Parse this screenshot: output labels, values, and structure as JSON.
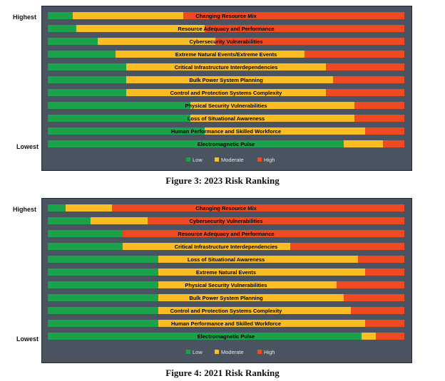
{
  "colors": {
    "low": "#1aa34a",
    "moderate": "#fbbd24",
    "high": "#f04a23",
    "panel": "#4a5461"
  },
  "chart_data": [
    {
      "type": "bar",
      "stacked": true,
      "orientation": "horizontal",
      "title": "Figure 3: 2023 Risk Ranking",
      "axis_top_label": "Highest",
      "axis_bottom_label": "Lowest",
      "legend": [
        "Low",
        "Moderate",
        "High"
      ],
      "legend_position": "bottom",
      "xlim": [
        0,
        100
      ],
      "categories": [
        "Changing Resource Mix",
        "Resource Adequacy and Performance",
        "Cybersecurity Vulnerabilities",
        "Extreme Natural Events/Extreme Events",
        "Critical Infrastructure Interdependencies",
        "Bulk Power System Planning",
        "Control and Protection Systems Complexity",
        "Physical Security Vulnerabilities",
        "Loss of Situational Awareness",
        "Human Performance and Skilled Workforce",
        "Electromagnetic Pulse"
      ],
      "series": [
        {
          "name": "Low",
          "values": [
            7,
            8,
            14,
            19,
            22,
            22,
            22,
            40,
            40,
            44,
            83
          ]
        },
        {
          "name": "Moderate",
          "values": [
            31,
            36,
            33,
            53,
            56,
            58,
            56,
            46,
            46,
            45,
            11
          ]
        },
        {
          "name": "High",
          "values": [
            62,
            56,
            53,
            28,
            22,
            20,
            22,
            14,
            14,
            11,
            6
          ]
        }
      ]
    },
    {
      "type": "bar",
      "stacked": true,
      "orientation": "horizontal",
      "title": "Figure 4: 2021 Risk Ranking",
      "axis_top_label": "Highest",
      "axis_bottom_label": "Lowest",
      "legend": [
        "Low",
        "Moderate",
        "High"
      ],
      "legend_position": "bottom",
      "xlim": [
        0,
        100
      ],
      "categories": [
        "Changing Resource Mix",
        "Cybersecurity Vulnerabilities",
        "Resource Adequacy and Performance",
        "Critical Infrastructure  Interdependencies",
        "Loss of Situational Awareness",
        "Extreme Natural  Events",
        "Physical Security Vulnerabilities",
        "Bulk Power System Planning",
        "Control and Protection Systems Complexity",
        "Human Performance and Skilled Workforce",
        "Electromagnetic Pulse"
      ],
      "series": [
        {
          "name": "Low",
          "values": [
            5,
            12,
            21,
            21,
            31,
            31,
            31,
            31,
            31,
            31,
            88
          ]
        },
        {
          "name": "Moderate",
          "values": [
            13,
            16,
            0,
            47,
            56,
            58,
            50,
            52,
            54,
            58,
            4
          ]
        },
        {
          "name": "High",
          "values": [
            82,
            72,
            79,
            32,
            13,
            11,
            19,
            17,
            15,
            11,
            8
          ]
        }
      ]
    }
  ]
}
